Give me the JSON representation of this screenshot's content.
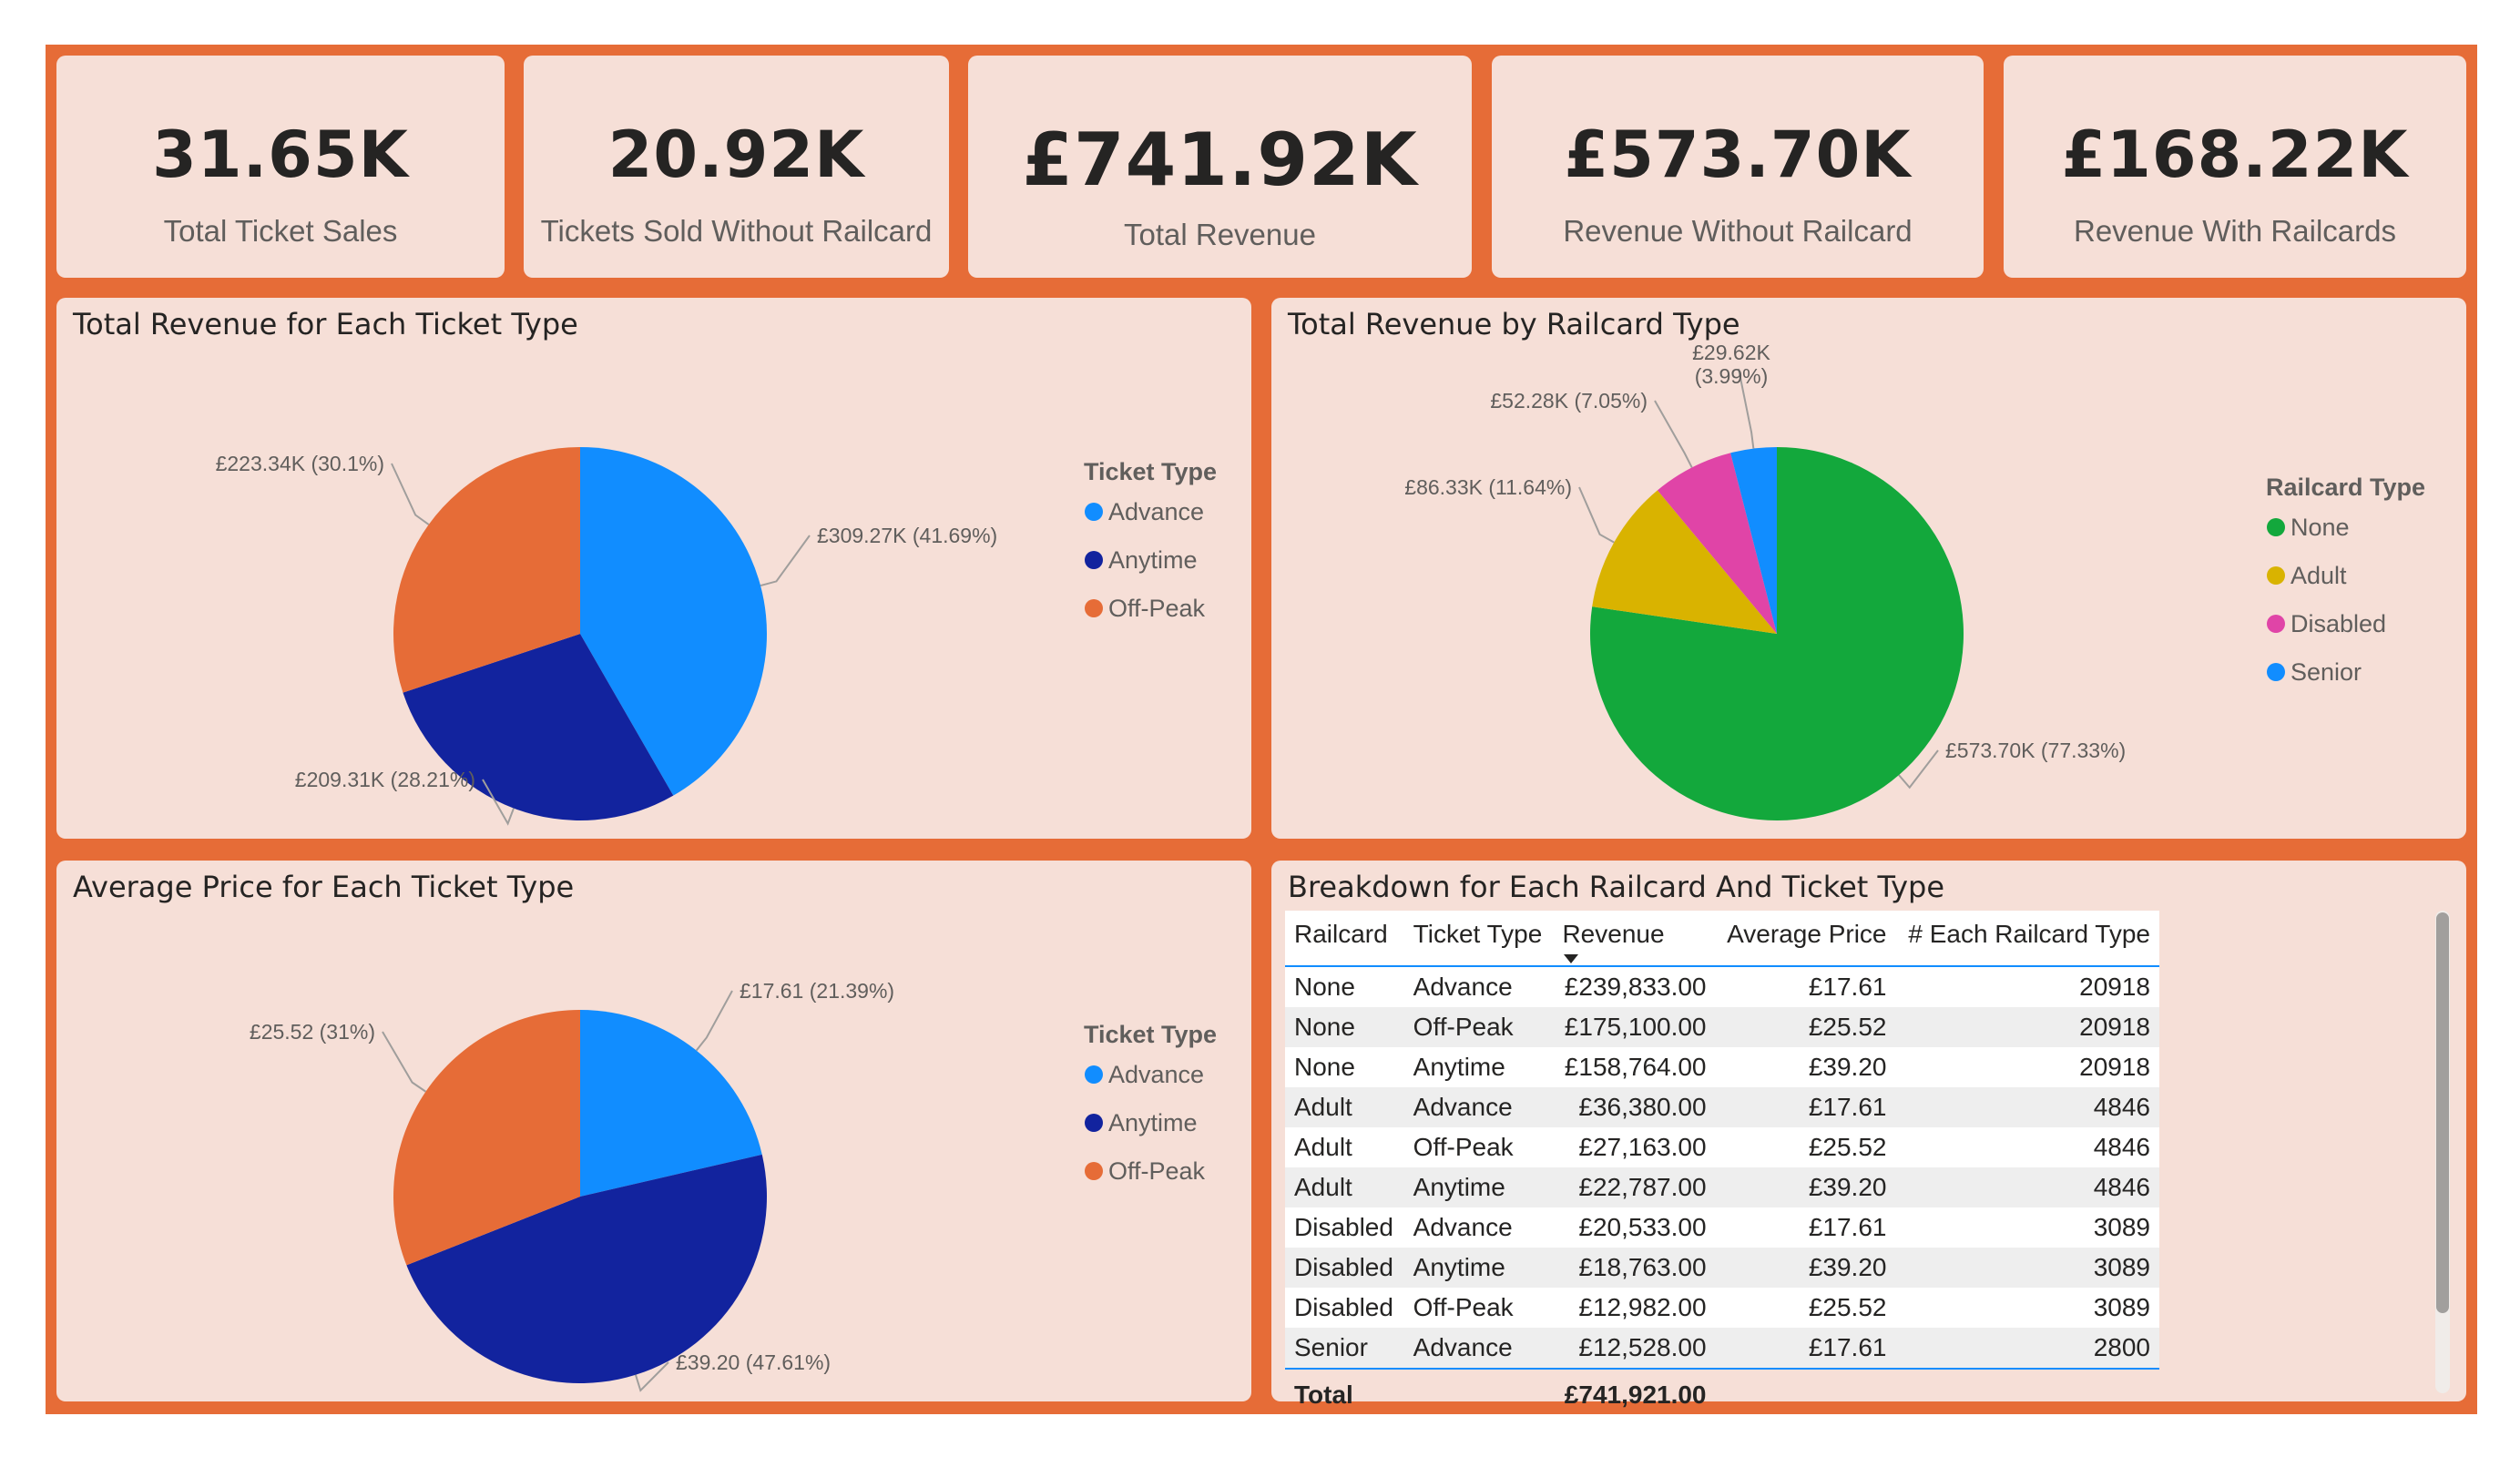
{
  "kpis": [
    {
      "value": "31.65K",
      "label": "Total Ticket Sales"
    },
    {
      "value": "20.92K",
      "label": "Tickets Sold Without Railcard"
    },
    {
      "value": "£741.92K",
      "label": "Total Revenue"
    },
    {
      "value": "£573.70K",
      "label": "Revenue Without Railcard"
    },
    {
      "value": "£168.22K",
      "label": "Revenue With Railcards"
    }
  ],
  "chart_data": [
    {
      "type": "pie",
      "title": "Total Revenue for Each Ticket Type",
      "legend_title": "Ticket Type",
      "legend_position": "right",
      "categories": [
        "Advance",
        "Anytime",
        "Off-Peak"
      ],
      "values": [
        309270,
        209310,
        223340
      ],
      "labels": [
        "£309.27K (41.69%)",
        "£209.31K (28.21%)",
        "£223.34K (30.1%)"
      ],
      "colors": [
        "#118dff",
        "#12239e",
        "#e66c37"
      ]
    },
    {
      "type": "pie",
      "title": "Total Revenue by Railcard Type",
      "legend_title": "Railcard Type",
      "legend_position": "right",
      "categories": [
        "None",
        "Adult",
        "Disabled",
        "Senior"
      ],
      "values": [
        573700,
        86330,
        52280,
        29620
      ],
      "labels": [
        "£573.70K (77.33%)",
        "£86.33K (11.64%)",
        "£52.28K (7.05%)",
        "£29.62K (3.99%)"
      ],
      "colors": [
        "#13a83c",
        "#d9b300",
        "#e044a7",
        "#118dff"
      ]
    },
    {
      "type": "pie",
      "title": "Average Price for Each Ticket Type",
      "legend_title": "Ticket Type",
      "legend_position": "right",
      "categories": [
        "Advance",
        "Anytime",
        "Off-Peak"
      ],
      "values": [
        17.61,
        39.2,
        25.52
      ],
      "labels": [
        "£17.61 (21.39%)",
        "£39.20 (47.61%)",
        "£25.52 (31%)"
      ],
      "colors": [
        "#118dff",
        "#12239e",
        "#e66c37"
      ]
    },
    {
      "type": "table",
      "title": "Breakdown for Each Railcard And Ticket Type",
      "columns": [
        "Railcard",
        "Ticket Type",
        "Revenue",
        "Average Price",
        "# Each Railcard Type"
      ],
      "rows": [
        [
          "None",
          "Advance",
          "£239,833.00",
          "£17.61",
          "20918"
        ],
        [
          "None",
          "Off-Peak",
          "£175,100.00",
          "£25.52",
          "20918"
        ],
        [
          "None",
          "Anytime",
          "£158,764.00",
          "£39.20",
          "20918"
        ],
        [
          "Adult",
          "Advance",
          "£36,380.00",
          "£17.61",
          "4846"
        ],
        [
          "Adult",
          "Off-Peak",
          "£27,163.00",
          "£25.52",
          "4846"
        ],
        [
          "Adult",
          "Anytime",
          "£22,787.00",
          "£39.20",
          "4846"
        ],
        [
          "Disabled",
          "Advance",
          "£20,533.00",
          "£17.61",
          "3089"
        ],
        [
          "Disabled",
          "Anytime",
          "£18,763.00",
          "£39.20",
          "3089"
        ],
        [
          "Disabled",
          "Off-Peak",
          "£12,982.00",
          "£25.52",
          "3089"
        ],
        [
          "Senior",
          "Advance",
          "£12,528.00",
          "£17.61",
          "2800"
        ]
      ],
      "total_label": "Total",
      "total_revenue": "£741,921.00"
    }
  ]
}
